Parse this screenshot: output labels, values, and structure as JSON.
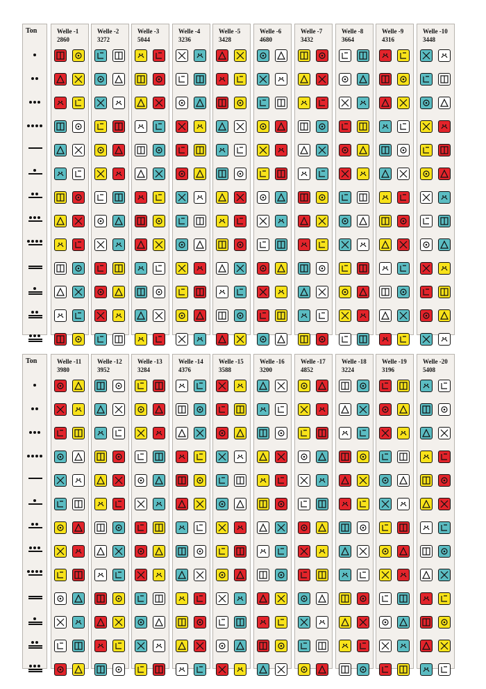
{
  "panels": [
    {
      "ton_label": "Ton",
      "waves": [
        {
          "name": "Welle -1",
          "number": "2860"
        },
        {
          "name": "Welle -2",
          "number": "3272"
        },
        {
          "name": "Welle -3",
          "number": "5044"
        },
        {
          "name": "Welle -4",
          "number": "3236"
        },
        {
          "name": "Welle -5",
          "number": "3428"
        },
        {
          "name": "Welle -6",
          "number": "4680"
        },
        {
          "name": "Welle -7",
          "number": "3432"
        },
        {
          "name": "Welle -8",
          "number": "3664"
        },
        {
          "name": "Welle -9",
          "number": "4316"
        },
        {
          "name": "Welle -10",
          "number": "3448"
        }
      ]
    },
    {
      "ton_label": "Ton",
      "waves": [
        {
          "name": "Welle -11",
          "number": "3980"
        },
        {
          "name": "Welle -12",
          "number": "3952"
        },
        {
          "name": "Welle -13",
          "number": "3284"
        },
        {
          "name": "Welle -14",
          "number": "4376"
        },
        {
          "name": "Welle -15",
          "number": "3588"
        },
        {
          "name": "Welle -16",
          "number": "3200"
        },
        {
          "name": "Welle -17",
          "number": "4852"
        },
        {
          "name": "Welle -18",
          "number": "3224"
        },
        {
          "name": "Welle -19",
          "number": "3196"
        },
        {
          "name": "Welle -20",
          "number": "5408"
        }
      ]
    }
  ],
  "tones": [
    1,
    2,
    3,
    4,
    5,
    6,
    7,
    8,
    9,
    10,
    11,
    12,
    13
  ],
  "colors": {
    "red": "#e2242b",
    "blue": "#5bbcc2",
    "yellow": "#f8e21a",
    "white": "#ffffff",
    "column_bg": "#f3f0ec",
    "column_border": "#b8b4ae"
  },
  "glyph_colors": [
    [
      "red",
      "white",
      "yellow",
      "blue"
    ],
    [
      "white",
      "red",
      "yellow",
      "blue"
    ],
    [
      "blue",
      "yellow",
      "white",
      "red"
    ],
    [
      "yellow",
      "blue",
      "red",
      "white"
    ]
  ]
}
